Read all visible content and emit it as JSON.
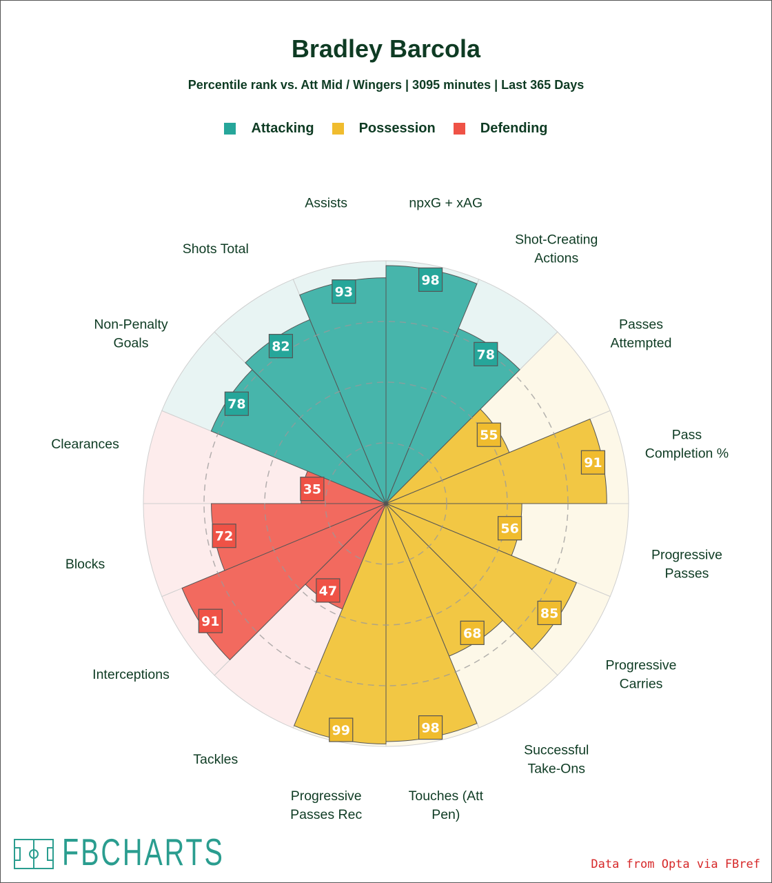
{
  "title": "Bradley Barcola",
  "subtitle": "Percentile rank vs. Att Mid / Wingers | 3095 minutes | Last 365 Days",
  "legend": [
    {
      "label": "Attacking",
      "color": "#26a69a"
    },
    {
      "label": "Possession",
      "color": "#f0bc2e"
    },
    {
      "label": "Defending",
      "color": "#ef5246"
    }
  ],
  "logo": {
    "text": "FBCHARTS",
    "icon": "pitch-icon"
  },
  "source": "Data from Opta via FBref",
  "colors": {
    "Attacking": {
      "fill": "#47b5ab",
      "bg": "#e8f4f3",
      "box": "#26a69a"
    },
    "Possession": {
      "fill": "#f2c744",
      "bg": "#fdf8e8",
      "box": "#f0bc2e"
    },
    "Defending": {
      "fill": "#f26a5f",
      "bg": "#fdecec",
      "box": "#ef5246"
    }
  },
  "chart_data": {
    "type": "radial-bar",
    "title": "Bradley Barcola",
    "subtitle": "Percentile rank vs. Att Mid / Wingers | 3095 minutes | Last 365 Days",
    "range": [
      0,
      100
    ],
    "grid_rings": [
      25,
      50,
      75
    ],
    "series": [
      {
        "name": "Attacking",
        "categories": [
          "npxG + xAG",
          "Shot-Creating Actions"
        ],
        "values": [
          98,
          78
        ]
      },
      {
        "name": "Possession",
        "categories": [
          "Passes Attempted",
          "Pass Completion %",
          "Progressive Passes",
          "Progressive Carries",
          "Successful Take-Ons",
          "Touches (Att Pen)",
          "Progressive Passes Rec"
        ],
        "values": [
          55,
          91,
          56,
          85,
          68,
          98,
          99
        ]
      },
      {
        "name": "Defending",
        "categories": [
          "Tackles",
          "Interceptions",
          "Blocks",
          "Clearances"
        ],
        "values": [
          47,
          91,
          72,
          35
        ]
      },
      {
        "name": "Attacking",
        "categories": [
          "Non-Penalty Goals",
          "Shots Total",
          "Assists"
        ],
        "values": [
          78,
          82,
          93
        ]
      }
    ],
    "stats": [
      {
        "label": [
          "npxG + xAG"
        ],
        "value": 98,
        "group": "Attacking"
      },
      {
        "label": [
          "Shot-Creating",
          "Actions"
        ],
        "value": 78,
        "group": "Attacking"
      },
      {
        "label": [
          "Passes",
          "Attempted"
        ],
        "value": 55,
        "group": "Possession"
      },
      {
        "label": [
          "Pass",
          "Completion %"
        ],
        "value": 91,
        "group": "Possession"
      },
      {
        "label": [
          "Progressive",
          "Passes"
        ],
        "value": 56,
        "group": "Possession"
      },
      {
        "label": [
          "Progressive",
          "Carries"
        ],
        "value": 85,
        "group": "Possession"
      },
      {
        "label": [
          "Successful",
          "Take-Ons"
        ],
        "value": 68,
        "group": "Possession"
      },
      {
        "label": [
          "Touches (Att",
          "Pen)"
        ],
        "value": 98,
        "group": "Possession"
      },
      {
        "label": [
          "Progressive",
          "Passes Rec"
        ],
        "value": 99,
        "group": "Possession"
      },
      {
        "label": [
          "Tackles"
        ],
        "value": 47,
        "group": "Defending"
      },
      {
        "label": [
          "Interceptions"
        ],
        "value": 91,
        "group": "Defending"
      },
      {
        "label": [
          "Blocks"
        ],
        "value": 72,
        "group": "Defending"
      },
      {
        "label": [
          "Clearances"
        ],
        "value": 35,
        "group": "Defending"
      },
      {
        "label": [
          "Non-Penalty",
          "Goals"
        ],
        "value": 78,
        "group": "Attacking"
      },
      {
        "label": [
          "Shots Total"
        ],
        "value": 82,
        "group": "Attacking"
      },
      {
        "label": [
          "Assists"
        ],
        "value": 93,
        "group": "Attacking"
      }
    ]
  }
}
